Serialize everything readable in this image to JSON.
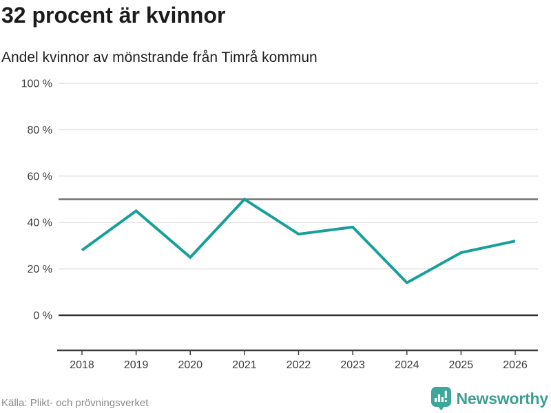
{
  "header": {
    "title": "32 procent är kvinnor",
    "subtitle": "Andel kvinnor av mönstrande från Timrå kommun"
  },
  "chart_data": {
    "type": "line",
    "title": "32 procent är kvinnor",
    "subtitle": "Andel kvinnor av mönstrande från Timrå kommun",
    "x": [
      2018,
      2019,
      2020,
      2021,
      2022,
      2023,
      2024,
      2025,
      2026
    ],
    "values": [
      28,
      45,
      25,
      50,
      35,
      38,
      14,
      27,
      32
    ],
    "series_name": "Andel kvinnor av mönstrande (%)",
    "ylim": [
      0,
      100
    ],
    "yticks": [
      0,
      20,
      40,
      60,
      80,
      100
    ],
    "ytick_suffix": " %",
    "reference_line": 50,
    "grid": true,
    "legend": "none",
    "source": "Källa: Plikt- och prövningsverket"
  },
  "footer": {
    "source": "Källa: Plikt- och prövningsverket",
    "brand_name": "Newsworthy"
  },
  "colors": {
    "line": "#17a098",
    "grid_light": "#e3e3e3",
    "reference_line": "#6f6f6f",
    "zero_line": "#303030",
    "axis": "#3d3d3d",
    "tick_label": "#3a3a3a",
    "brand_teal": "#3ea69a"
  }
}
